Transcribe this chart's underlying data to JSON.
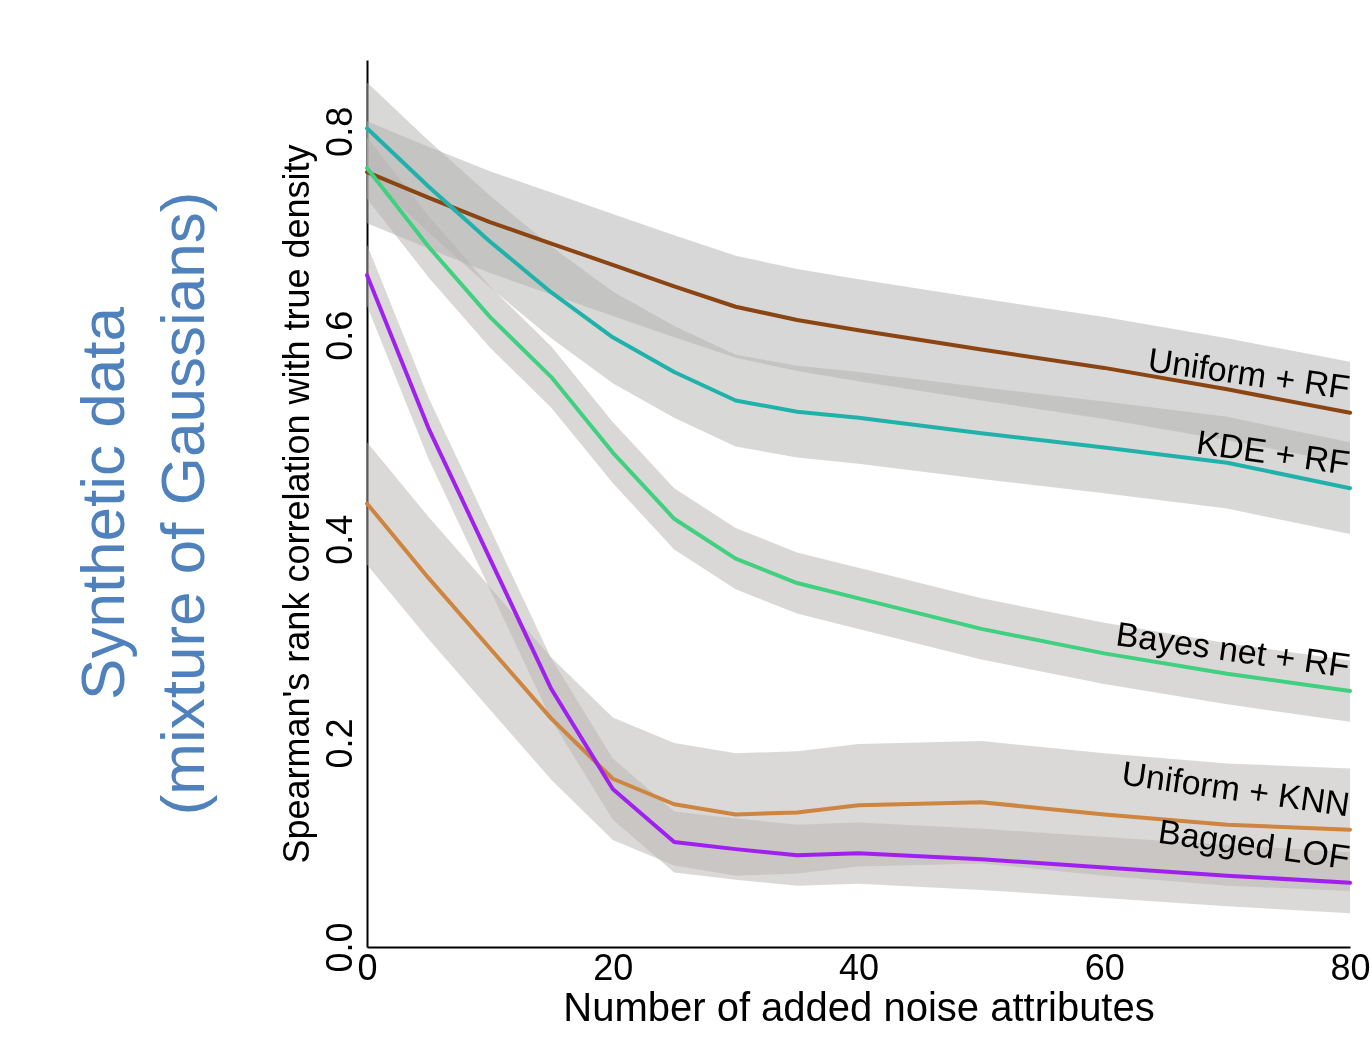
{
  "chart_data": {
    "type": "line",
    "title": "Synthetic data\n(mixture of Gaussians)",
    "xlabel": "Number of added noise attributes",
    "ylabel": "Spearman's rank correlation with true density",
    "x": [
      0,
      5,
      10,
      15,
      20,
      25,
      30,
      35,
      40,
      50,
      60,
      70,
      80
    ],
    "xlim": [
      0,
      80
    ],
    "xticks": [
      0,
      20,
      40,
      60,
      80
    ],
    "ylim": [
      0,
      0.87
    ],
    "yticks": [
      {
        "value": 0,
        "label": "0.0"
      },
      {
        "value": 0.2,
        "label": "0.2"
      },
      {
        "value": 0.4,
        "label": "0.4"
      },
      {
        "value": 0.6,
        "label": "0.6"
      },
      {
        "value": 0.8,
        "label": "0.8"
      }
    ],
    "grid": false,
    "legend": false,
    "series": [
      {
        "name": "Uniform + RF",
        "color": "#8b4513",
        "values": [
          0.76,
          0.735,
          0.711,
          0.69,
          0.669,
          0.648,
          0.628,
          0.615,
          0.605,
          0.586,
          0.568,
          0.547,
          0.524
        ],
        "lower": [
          0.71,
          0.685,
          0.661,
          0.64,
          0.619,
          0.598,
          0.578,
          0.565,
          0.555,
          0.536,
          0.518,
          0.497,
          0.474
        ],
        "upper": [
          0.81,
          0.785,
          0.761,
          0.74,
          0.719,
          0.698,
          0.678,
          0.665,
          0.655,
          0.636,
          0.618,
          0.597,
          0.574
        ]
      },
      {
        "name": "KDE + RF",
        "color": "#20b2aa",
        "values": [
          0.803,
          0.746,
          0.692,
          0.642,
          0.598,
          0.564,
          0.536,
          0.525,
          0.519,
          0.504,
          0.49,
          0.475,
          0.45
        ],
        "lower": [
          0.758,
          0.701,
          0.647,
          0.597,
          0.553,
          0.519,
          0.491,
          0.48,
          0.474,
          0.459,
          0.445,
          0.43,
          0.405
        ],
        "upper": [
          0.848,
          0.791,
          0.737,
          0.687,
          0.643,
          0.609,
          0.581,
          0.57,
          0.564,
          0.549,
          0.535,
          0.52,
          0.495
        ]
      },
      {
        "name": "Bayes net + RF",
        "color": "#40d080",
        "values": [
          0.764,
          0.687,
          0.618,
          0.559,
          0.485,
          0.42,
          0.381,
          0.357,
          0.342,
          0.312,
          0.288,
          0.268,
          0.251
        ],
        "lower": [
          0.734,
          0.657,
          0.588,
          0.529,
          0.455,
          0.39,
          0.351,
          0.327,
          0.312,
          0.282,
          0.258,
          0.238,
          0.221
        ],
        "upper": [
          0.794,
          0.717,
          0.648,
          0.589,
          0.515,
          0.45,
          0.411,
          0.387,
          0.372,
          0.342,
          0.318,
          0.298,
          0.281
        ]
      },
      {
        "name": "Uniform + KNN",
        "color": "#cd853f",
        "values": [
          0.435,
          0.362,
          0.293,
          0.224,
          0.165,
          0.14,
          0.13,
          0.132,
          0.139,
          0.142,
          0.13,
          0.12,
          0.115
        ],
        "lower": [
          0.375,
          0.302,
          0.233,
          0.164,
          0.105,
          0.08,
          0.07,
          0.072,
          0.079,
          0.082,
          0.07,
          0.06,
          0.055
        ],
        "upper": [
          0.495,
          0.422,
          0.353,
          0.284,
          0.225,
          0.2,
          0.19,
          0.192,
          0.199,
          0.202,
          0.19,
          0.18,
          0.175
        ]
      },
      {
        "name": "Bagged LOF",
        "color": "#a020f0",
        "values": [
          0.659,
          0.509,
          0.381,
          0.253,
          0.155,
          0.103,
          0.096,
          0.09,
          0.092,
          0.086,
          0.078,
          0.07,
          0.063
        ],
        "lower": [
          0.629,
          0.479,
          0.351,
          0.223,
          0.125,
          0.073,
          0.066,
          0.06,
          0.062,
          0.056,
          0.048,
          0.04,
          0.033
        ],
        "upper": [
          0.689,
          0.539,
          0.411,
          0.283,
          0.185,
          0.133,
          0.126,
          0.12,
          0.122,
          0.116,
          0.108,
          0.1,
          0.093
        ]
      }
    ]
  }
}
